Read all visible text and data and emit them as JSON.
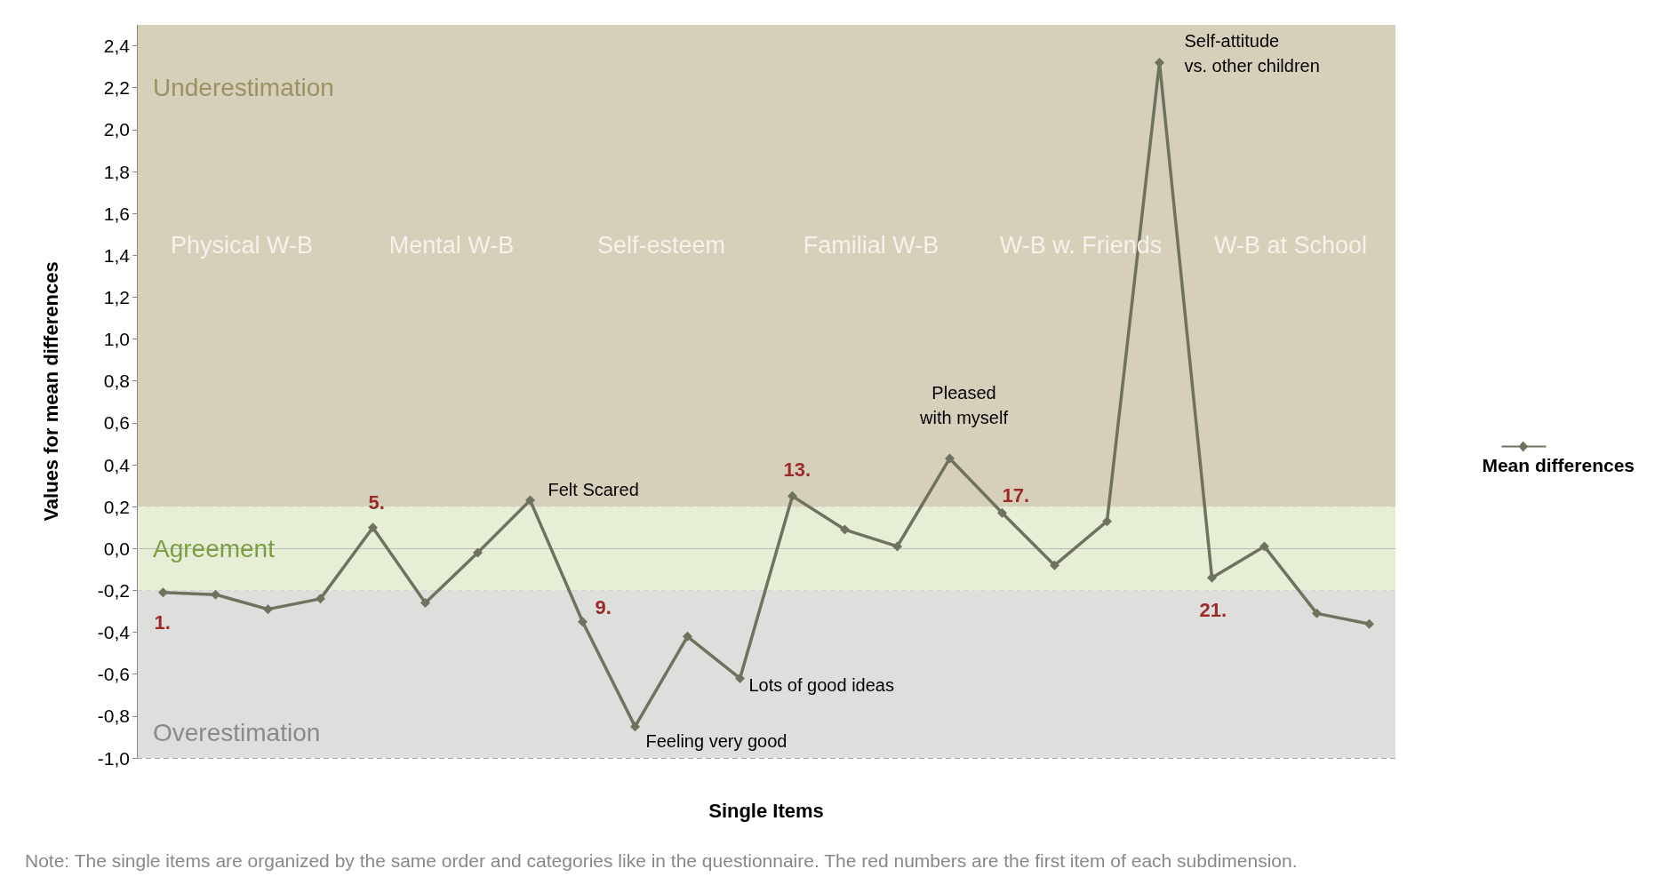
{
  "chart_data": {
    "type": "line",
    "xlabel": "Single Items",
    "ylabel": "Values for mean differences",
    "categories": [
      null,
      null,
      null,
      null,
      null,
      null,
      null,
      null,
      null,
      null,
      null,
      null,
      null,
      null,
      null,
      null,
      null,
      null,
      null,
      null,
      null,
      null,
      null,
      null
    ],
    "series": [
      {
        "name": "Mean differences",
        "color": "#6e725f",
        "values": [
          -0.21,
          -0.22,
          -0.29,
          -0.24,
          0.1,
          -0.26,
          -0.02,
          0.23,
          -0.35,
          -0.85,
          -0.42,
          -0.62,
          0.25,
          0.09,
          0.01,
          0.43,
          0.17,
          -0.08,
          0.13,
          2.32,
          -0.14,
          0.01,
          -0.31,
          -0.36
        ]
      }
    ],
    "ylim": [
      -1.0,
      2.5
    ],
    "yticks": [
      {
        "value": -1.0,
        "label": "-1,0"
      },
      {
        "value": -0.8,
        "label": "-0,8"
      },
      {
        "value": -0.6,
        "label": "-0,6"
      },
      {
        "value": -0.4,
        "label": "-0,4"
      },
      {
        "value": -0.2,
        "label": "-0,2"
      },
      {
        "value": 0.0,
        "label": "0,0"
      },
      {
        "value": 0.2,
        "label": "0,2"
      },
      {
        "value": 0.4,
        "label": "0,4"
      },
      {
        "value": 0.6,
        "label": "0,6"
      },
      {
        "value": 0.8,
        "label": "0,8"
      },
      {
        "value": 1.0,
        "label": "1,0"
      },
      {
        "value": 1.2,
        "label": "1,2"
      },
      {
        "value": 1.4,
        "label": "1,4"
      },
      {
        "value": 1.6,
        "label": "1,6"
      },
      {
        "value": 1.8,
        "label": "1,8"
      },
      {
        "value": 2.0,
        "label": "2,0"
      },
      {
        "value": 2.2,
        "label": "2,2"
      },
      {
        "value": 2.4,
        "label": "2,4"
      }
    ],
    "bands": [
      {
        "axis": "y",
        "from": 0.2,
        "to": 2.5,
        "label": "Underestimation",
        "color": "#d6cfba"
      },
      {
        "axis": "y",
        "from": -0.2,
        "to": 0.2,
        "label": "Agreement",
        "color": "#e7eed6"
      },
      {
        "axis": "y",
        "from": -1.0,
        "to": -0.2,
        "label": "Overestimation",
        "color": "#dededc"
      }
    ],
    "annotations": [
      "Physical W-B",
      "Mental W-B",
      "Self-esteem",
      "Familial W-B",
      "W-B w. Friends",
      "W-B at School",
      "1.",
      "5.",
      "9.",
      "13.",
      "17.",
      "21.",
      "Felt Scared",
      "Feeling very good",
      "Lots of good ideas",
      "Pleased\nwith myself",
      "Self-attitude\nvs. other children",
      "Note: The single items are organized by the same order and categories like in the questionnaire. The red numbers are the first item of each subdimension."
    ],
    "grid": true,
    "legend": "right",
    "marker": "diamond",
    "line_style": "solid"
  }
}
